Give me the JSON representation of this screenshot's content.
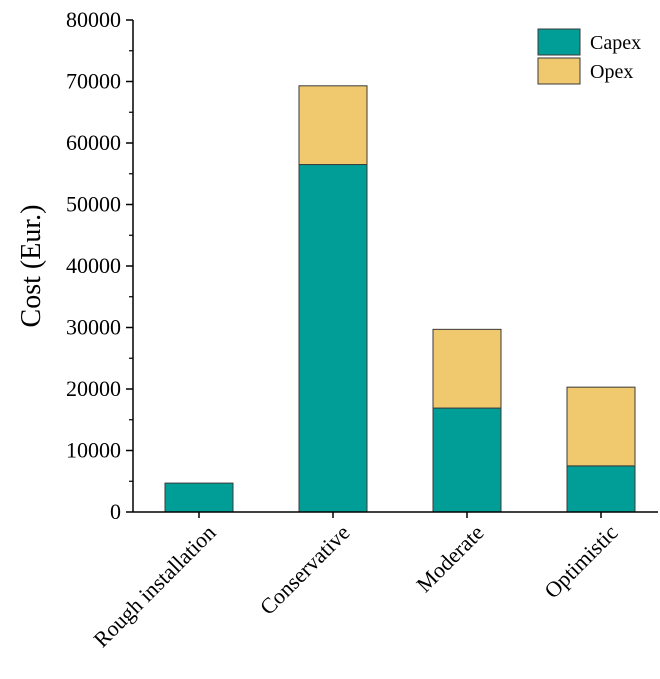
{
  "chart_data": {
    "type": "bar",
    "stacked": true,
    "categories": [
      "Rough installation",
      "Conservative",
      "Moderate",
      "Optimistic"
    ],
    "series": [
      {
        "name": "Capex",
        "values": [
          4700,
          56500,
          16900,
          7500
        ],
        "color": "#009e96"
      },
      {
        "name": "Opex",
        "values": [
          0,
          12800,
          12800,
          12800
        ],
        "color": "#f0c86e"
      }
    ],
    "ylabel": "Cost (Eur.)",
    "xlabel": "",
    "ylim": [
      0,
      80000
    ],
    "yticks": [
      "0",
      "10000",
      "20000",
      "30000",
      "40000",
      "50000",
      "60000",
      "70000",
      "80000"
    ],
    "grid": false,
    "legend_position": "top-right"
  }
}
